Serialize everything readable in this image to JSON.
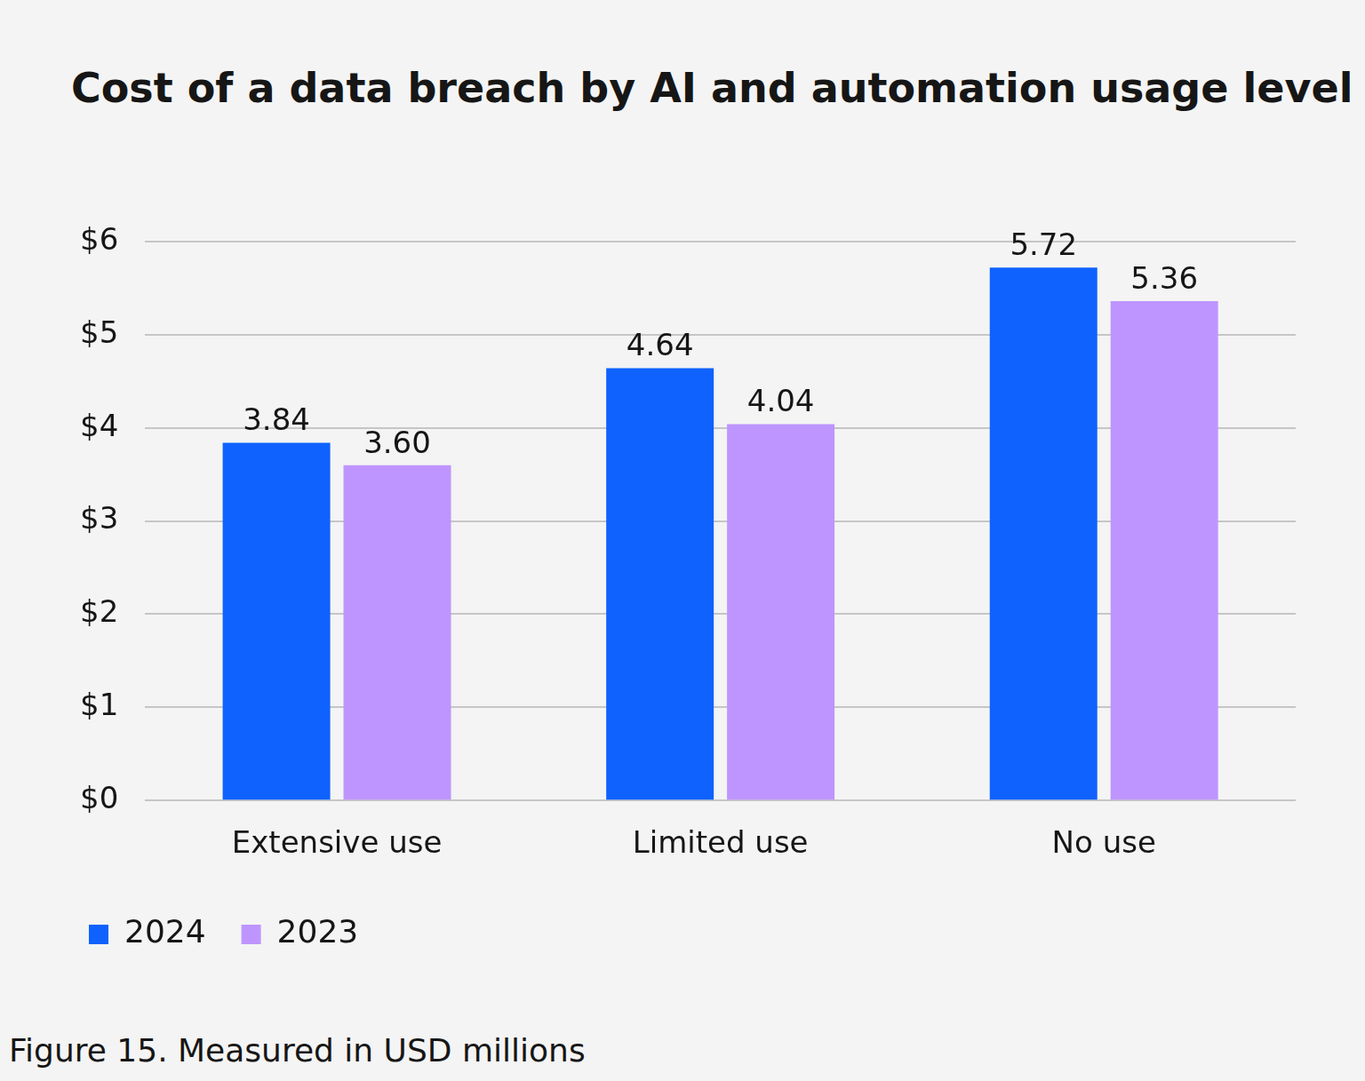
{
  "chart_data": {
    "type": "bar",
    "title": "Cost of a data breach by AI and automation usage level",
    "caption": "Figure 15. Measured in USD millions",
    "categories": [
      "Extensive use",
      "Limited use",
      "No use"
    ],
    "series": [
      {
        "name": "2024",
        "color": "#0f62fe",
        "values": [
          3.84,
          4.64,
          5.72
        ],
        "value_labels": [
          "3.84",
          "4.64",
          "5.72"
        ]
      },
      {
        "name": "2023",
        "color": "#be95ff",
        "values": [
          3.6,
          4.04,
          5.36
        ],
        "value_labels": [
          "3.60",
          "4.04",
          "5.36"
        ]
      }
    ],
    "ylim": [
      0,
      6
    ],
    "yticks": [
      {
        "value": 0,
        "label": "$0"
      },
      {
        "value": 1,
        "label": "$1"
      },
      {
        "value": 2,
        "label": "$2"
      },
      {
        "value": 3,
        "label": "$3"
      },
      {
        "value": 4,
        "label": "$4"
      },
      {
        "value": 5,
        "label": "$5"
      },
      {
        "value": 6,
        "label": "$6"
      }
    ],
    "grid": true,
    "data_labels": true,
    "legend": "bottom-left"
  }
}
